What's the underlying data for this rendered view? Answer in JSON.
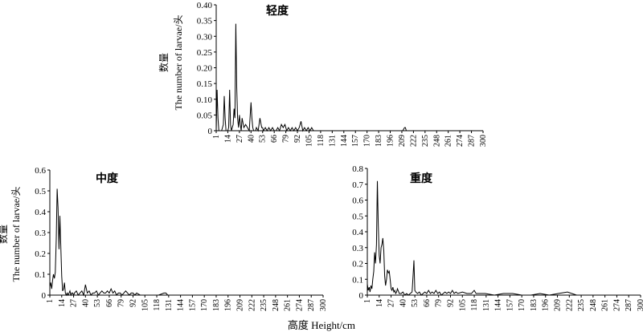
{
  "shared_xlabel": "高度 Height/cm",
  "chart_data": [
    {
      "type": "line",
      "title": "轻度",
      "ylabel_cn": "数量",
      "ylabel_en": "The number of larvae/头",
      "xlabel": "",
      "ylim": [
        0,
        0.4
      ],
      "yticks": [
        "0",
        "0.05",
        "0.10",
        "0.15",
        "0.20",
        "0.25",
        "0.30",
        "0.35",
        "0.40"
      ],
      "xlim": [
        1,
        300
      ],
      "xticks": [
        "1",
        "14",
        "27",
        "40",
        "53",
        "66",
        "79",
        "92",
        "105",
        "118",
        "131",
        "144",
        "157",
        "170",
        "183",
        "196",
        "209",
        "222",
        "235",
        "248",
        "261",
        "274",
        "287",
        "300"
      ],
      "x": [
        1,
        2,
        3,
        4,
        6,
        7,
        8,
        9,
        10,
        11,
        12,
        13,
        14,
        15,
        16,
        17,
        18,
        19,
        20,
        21,
        22,
        23,
        24,
        25,
        26,
        27,
        28,
        29,
        30,
        32,
        34,
        36,
        38,
        40,
        41,
        42,
        43,
        44,
        45,
        46,
        48,
        50,
        52,
        53,
        54,
        56,
        58,
        60,
        62,
        64,
        66,
        68,
        70,
        72,
        74,
        76,
        78,
        80,
        82,
        84,
        86,
        88,
        90,
        92,
        94,
        96,
        98,
        100,
        102,
        104,
        106,
        108,
        110,
        112,
        114,
        116,
        118,
        120,
        130,
        140,
        150,
        160,
        170,
        180,
        190,
        200,
        210,
        212,
        213,
        214,
        216,
        220,
        230,
        240,
        250,
        260,
        270,
        280,
        290,
        300
      ],
      "y": [
        0,
        0.13,
        0.04,
        0,
        0,
        0,
        0.01,
        0.02,
        0.11,
        0.04,
        0,
        0,
        0,
        0.01,
        0.13,
        0.02,
        0,
        0.01,
        0.02,
        0.07,
        0.04,
        0.34,
        0.14,
        0.04,
        0.01,
        0.05,
        0.02,
        0,
        0.04,
        0.01,
        0.02,
        0.01,
        0,
        0.09,
        0.04,
        0.01,
        0,
        0,
        0,
        0.01,
        0,
        0.04,
        0.01,
        0.01,
        0,
        0.01,
        0,
        0.01,
        0,
        0.01,
        0,
        0,
        0.01,
        0,
        0.02,
        0.01,
        0.02,
        0,
        0.01,
        0,
        0.01,
        0,
        0.01,
        0,
        0.01,
        0.03,
        0,
        0.01,
        0,
        0.01,
        0,
        0.01,
        0,
        0,
        0,
        0,
        0,
        0,
        0,
        0,
        0,
        0,
        0,
        0,
        0,
        0,
        0,
        0.01,
        0.01,
        0,
        0,
        0,
        0,
        0,
        0,
        0,
        0,
        0,
        0,
        0
      ]
    },
    {
      "type": "line",
      "title": "中度",
      "ylabel_cn": "数量",
      "ylabel_en": "The number of larvae/头",
      "xlabel": "",
      "ylim": [
        0,
        0.6
      ],
      "yticks": [
        "0",
        "0.1",
        "0.2",
        "0.3",
        "0.4",
        "0.5",
        "0.6"
      ],
      "xlim": [
        1,
        300
      ],
      "xticks": [
        "1",
        "14",
        "27",
        "40",
        "53",
        "66",
        "79",
        "92",
        "105",
        "118",
        "131",
        "144",
        "157",
        "170",
        "183",
        "196",
        "209",
        "222",
        "235",
        "248",
        "261",
        "274",
        "287",
        "300"
      ],
      "x": [
        1,
        2,
        3,
        4,
        5,
        6,
        7,
        8,
        9,
        10,
        11,
        12,
        13,
        14,
        15,
        16,
        17,
        18,
        19,
        20,
        21,
        22,
        23,
        24,
        25,
        26,
        27,
        28,
        30,
        32,
        34,
        36,
        38,
        40,
        42,
        44,
        46,
        48,
        50,
        52,
        54,
        56,
        58,
        60,
        62,
        64,
        66,
        68,
        70,
        72,
        74,
        76,
        78,
        80,
        82,
        84,
        86,
        88,
        90,
        92,
        94,
        96,
        100,
        110,
        120,
        126,
        128,
        130,
        140,
        150,
        160,
        170,
        180,
        190,
        200,
        210,
        220,
        230,
        240,
        250,
        260,
        270,
        280,
        290,
        300
      ],
      "y": [
        0.04,
        0.06,
        0.03,
        0.07,
        0.1,
        0.08,
        0.11,
        0.27,
        0.51,
        0.42,
        0.22,
        0.38,
        0.24,
        0.09,
        0.02,
        0.03,
        0.06,
        0.01,
        0,
        0.01,
        0,
        0.01,
        0.02,
        0,
        0.01,
        0.01,
        0,
        0.01,
        0.02,
        0,
        0.01,
        0.02,
        0,
        0.05,
        0.01,
        0.02,
        0,
        0.01,
        0.01,
        0.02,
        0,
        0.01,
        0.02,
        0.01,
        0.01,
        0.02,
        0.01,
        0.03,
        0.01,
        0.02,
        0,
        0.01,
        0.01,
        0,
        0.01,
        0.02,
        0.01,
        0,
        0.01,
        0.01,
        0,
        0.01,
        0,
        0,
        0,
        0.01,
        0.01,
        0,
        0,
        0,
        0,
        0,
        0,
        0,
        0,
        0,
        0,
        0,
        0,
        0,
        0,
        0,
        0,
        0,
        0
      ]
    },
    {
      "type": "line",
      "title": "重度",
      "ylabel_cn": "",
      "ylabel_en": "",
      "xlabel": "",
      "ylim": [
        0,
        0.8
      ],
      "yticks": [
        "0",
        "0.1",
        "0.2",
        "0.3",
        "0.4",
        "0.5",
        "0.6",
        "0.7",
        "0.8"
      ],
      "xlim": [
        1,
        300
      ],
      "xticks": [
        "1",
        "14",
        "27",
        "40",
        "53",
        "66",
        "79",
        "92",
        "105",
        "118",
        "131",
        "144",
        "157",
        "170",
        "183",
        "196",
        "209",
        "222",
        "235",
        "248",
        "261",
        "274",
        "287",
        "300"
      ],
      "x": [
        1,
        2,
        3,
        4,
        5,
        6,
        7,
        8,
        9,
        10,
        11,
        12,
        13,
        14,
        15,
        16,
        17,
        18,
        19,
        20,
        21,
        22,
        23,
        24,
        25,
        26,
        27,
        28,
        29,
        30,
        31,
        32,
        33,
        34,
        36,
        38,
        40,
        42,
        44,
        46,
        48,
        50,
        51,
        52,
        53,
        54,
        56,
        58,
        60,
        62,
        64,
        66,
        68,
        70,
        72,
        74,
        76,
        78,
        80,
        82,
        84,
        86,
        88,
        90,
        92,
        94,
        96,
        98,
        100,
        105,
        110,
        115,
        118,
        120,
        125,
        130,
        140,
        150,
        160,
        170,
        180,
        190,
        200,
        210,
        220,
        230,
        240,
        250,
        260,
        270,
        280,
        290,
        300
      ],
      "y": [
        0.07,
        0.03,
        0.05,
        0.02,
        0.06,
        0.04,
        0.1,
        0.15,
        0.27,
        0.2,
        0.32,
        0.72,
        0.45,
        0.25,
        0.2,
        0.3,
        0.32,
        0.36,
        0.28,
        0.12,
        0.06,
        0.1,
        0.16,
        0.14,
        0.15,
        0.1,
        0.04,
        0.03,
        0.05,
        0.02,
        0.03,
        0.01,
        0.02,
        0.04,
        0.01,
        0.01,
        0.02,
        0,
        0.01,
        0,
        0.01,
        0.02,
        0.12,
        0.22,
        0.03,
        0.02,
        0.01,
        0.02,
        0,
        0.01,
        0.02,
        0.01,
        0.03,
        0.01,
        0.02,
        0.01,
        0.03,
        0.01,
        0.02,
        0,
        0.01,
        0.02,
        0.01,
        0.02,
        0.01,
        0.03,
        0.01,
        0.02,
        0.01,
        0.02,
        0.01,
        0.01,
        0.03,
        0.01,
        0.01,
        0.01,
        0,
        0.01,
        0.01,
        0,
        0,
        0.01,
        0,
        0.01,
        0.02,
        0,
        0,
        0,
        0,
        0,
        0,
        0,
        0
      ]
    }
  ]
}
